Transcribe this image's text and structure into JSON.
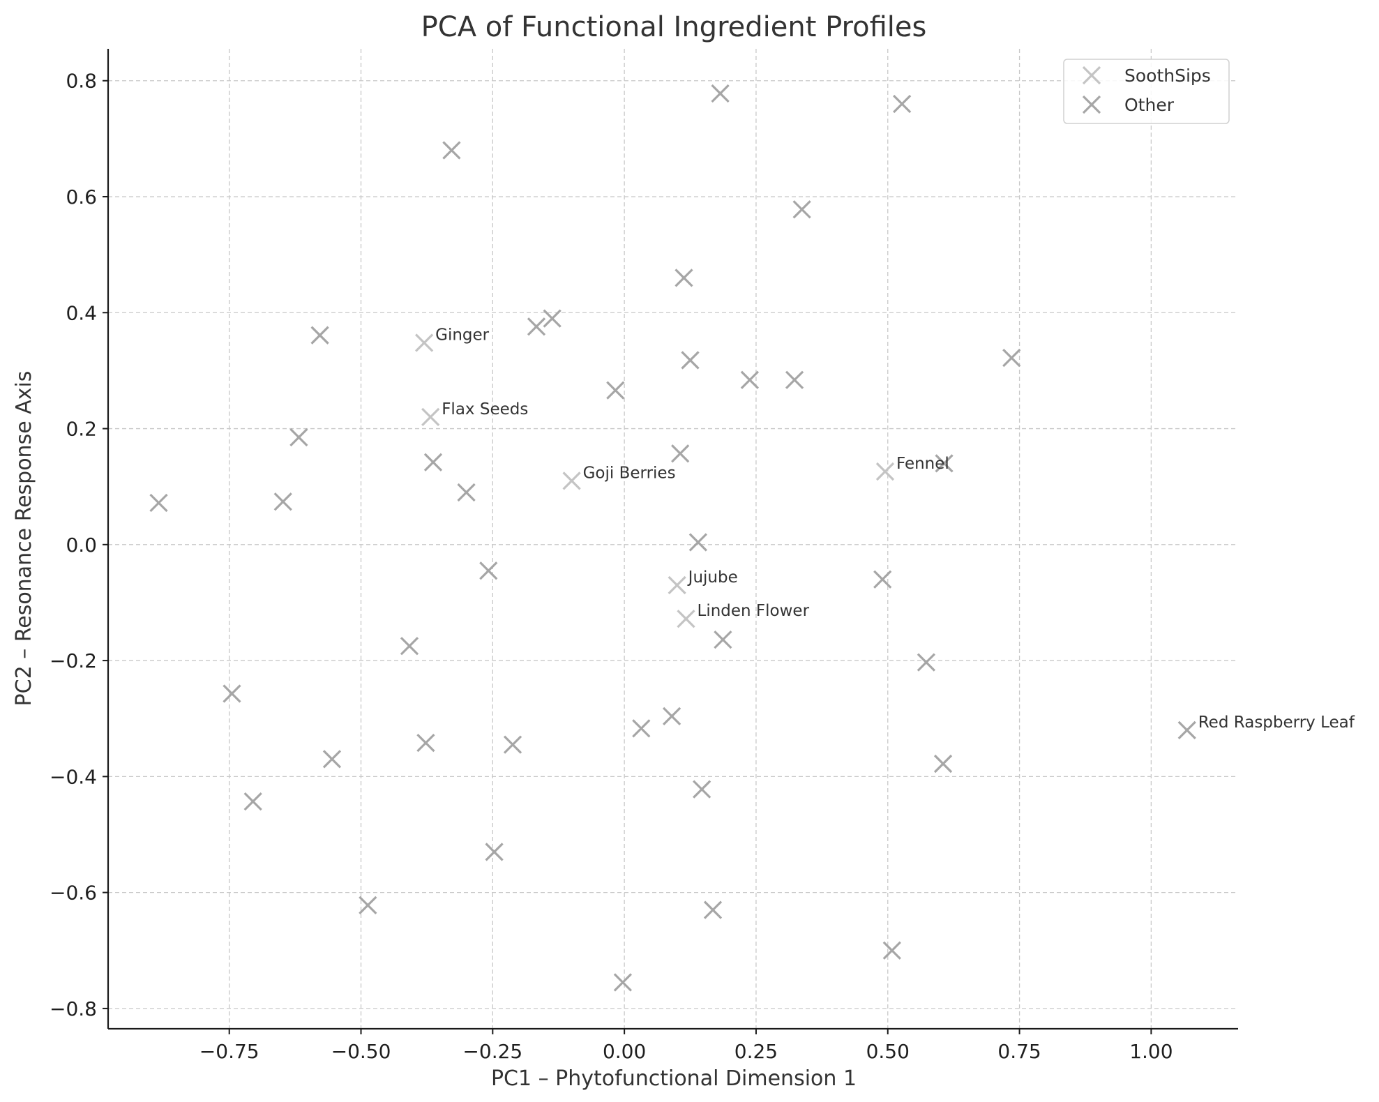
{
  "chart_data": {
    "type": "scatter",
    "title": "PCA of Functional Ingredient Profiles",
    "xlabel": "PC1 – Phytofunctional Dimension 1",
    "ylabel": "PC2 – Resonance Response Axis",
    "xlim": [
      -0.98,
      1.165
    ],
    "ylim": [
      -0.835,
      0.855
    ],
    "xticks": [
      -0.75,
      -0.5,
      -0.25,
      0.0,
      0.25,
      0.5,
      0.75,
      1.0
    ],
    "xtick_labels": [
      "−0.75",
      "−0.50",
      "−0.25",
      "0.00",
      "0.25",
      "0.50",
      "0.75",
      "1.00"
    ],
    "yticks": [
      -0.8,
      -0.6,
      -0.4,
      -0.2,
      0.0,
      0.2,
      0.4,
      0.6,
      0.8
    ],
    "ytick_labels": [
      "−0.8",
      "−0.6",
      "−0.4",
      "−0.2",
      "0.0",
      "0.2",
      "0.4",
      "0.6",
      "0.8"
    ],
    "grid": true,
    "legend_position": "top-right",
    "colors": {
      "SoothSips": "#c4c4c4",
      "Other": "#a6a6a6",
      "axes": "#1a1a1a",
      "grid": "#c8c8c8"
    },
    "series": [
      {
        "name": "SoothSips",
        "marker": "x",
        "points": [
          {
            "x": -0.38,
            "y": 0.348,
            "label": "Ginger"
          },
          {
            "x": -0.368,
            "y": 0.22,
            "label": "Flax Seeds"
          },
          {
            "x": -0.1,
            "y": 0.11,
            "label": "Goji Berries"
          },
          {
            "x": 0.495,
            "y": 0.126,
            "label": "Fennel"
          },
          {
            "x": 0.1,
            "y": -0.07,
            "label": "Jujube"
          },
          {
            "x": 0.117,
            "y": -0.128,
            "label": "Linden Flower"
          }
        ]
      },
      {
        "name": "Other",
        "marker": "x",
        "points": [
          {
            "x": 0.182,
            "y": 0.778
          },
          {
            "x": 0.527,
            "y": 0.76
          },
          {
            "x": -0.328,
            "y": 0.68
          },
          {
            "x": 0.337,
            "y": 0.578
          },
          {
            "x": 0.113,
            "y": 0.46
          },
          {
            "x": -0.137,
            "y": 0.39
          },
          {
            "x": -0.167,
            "y": 0.376
          },
          {
            "x": -0.578,
            "y": 0.361
          },
          {
            "x": 0.125,
            "y": 0.318
          },
          {
            "x": 0.735,
            "y": 0.322
          },
          {
            "x": 0.238,
            "y": 0.284
          },
          {
            "x": 0.323,
            "y": 0.284
          },
          {
            "x": -0.017,
            "y": 0.266
          },
          {
            "x": -0.618,
            "y": 0.185
          },
          {
            "x": 0.106,
            "y": 0.157
          },
          {
            "x": -0.363,
            "y": 0.142
          },
          {
            "x": 0.607,
            "y": 0.14
          },
          {
            "x": -0.3,
            "y": 0.09
          },
          {
            "x": -0.884,
            "y": 0.072
          },
          {
            "x": -0.648,
            "y": 0.074
          },
          {
            "x": 0.14,
            "y": 0.004
          },
          {
            "x": -0.258,
            "y": -0.045
          },
          {
            "x": 0.49,
            "y": -0.06
          },
          {
            "x": 0.187,
            "y": -0.164
          },
          {
            "x": -0.408,
            "y": -0.175
          },
          {
            "x": 0.573,
            "y": -0.203
          },
          {
            "x": -0.745,
            "y": -0.257
          },
          {
            "x": 0.09,
            "y": -0.296
          },
          {
            "x": 0.032,
            "y": -0.317
          },
          {
            "x": 1.068,
            "y": -0.32,
            "label": "Red Raspberry Leaf"
          },
          {
            "x": -0.377,
            "y": -0.342
          },
          {
            "x": -0.212,
            "y": -0.345
          },
          {
            "x": -0.555,
            "y": -0.37
          },
          {
            "x": 0.605,
            "y": -0.378
          },
          {
            "x": 0.147,
            "y": -0.422
          },
          {
            "x": -0.705,
            "y": -0.443
          },
          {
            "x": -0.247,
            "y": -0.53
          },
          {
            "x": -0.487,
            "y": -0.622
          },
          {
            "x": 0.168,
            "y": -0.63
          },
          {
            "x": 0.508,
            "y": -0.7
          },
          {
            "x": -0.003,
            "y": -0.755
          }
        ]
      }
    ]
  }
}
